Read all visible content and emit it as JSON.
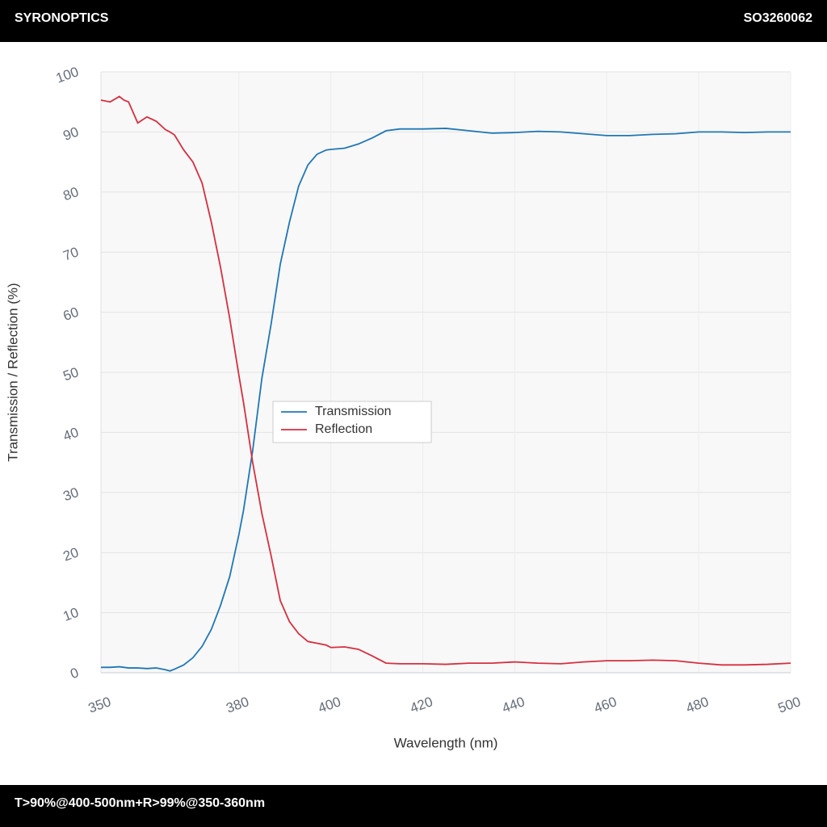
{
  "header": {
    "brand": "SYRONOPTICS",
    "code": "SO3260062"
  },
  "footer": {
    "spec": "T>90%@400-500nm+R>99%@350-360nm"
  },
  "chart_data": {
    "type": "line",
    "xlabel": "Wavelength (nm)",
    "ylabel": "Transmission / Reflection (%)",
    "x": [
      350,
      352,
      354,
      355,
      356,
      358,
      360,
      362,
      364,
      365,
      366,
      368,
      370,
      372,
      374,
      376,
      378,
      380,
      381,
      383,
      385,
      387,
      389,
      391,
      393,
      395,
      397,
      399,
      400,
      403,
      406,
      409,
      412,
      415,
      420,
      425,
      430,
      435,
      440,
      445,
      450,
      455,
      460,
      465,
      470,
      475,
      480,
      485,
      490,
      495,
      500
    ],
    "series": [
      {
        "name": "Transmission",
        "color": "#1f77b4",
        "values": [
          0.9,
          0.9,
          1.0,
          0.9,
          0.8,
          0.8,
          0.7,
          0.8,
          0.5,
          0.3,
          0.6,
          1.3,
          2.5,
          4.4,
          7.2,
          11.2,
          16,
          23,
          27,
          37,
          49,
          58,
          68,
          75,
          81,
          84.5,
          86.3,
          87,
          87.1,
          87.3,
          88,
          89,
          90.2,
          90.5,
          90.5,
          90.6,
          90.2,
          89.8,
          89.9,
          90.1,
          90.0,
          89.7,
          89.4,
          89.4,
          89.6,
          89.7,
          90.0,
          90.0,
          89.9,
          90.0,
          90.0
        ]
      },
      {
        "name": "Reflection",
        "color": "#d62f3f",
        "values": [
          95.3,
          95.0,
          95.9,
          95.3,
          95.0,
          91.5,
          92.5,
          91.8,
          90.4,
          90.0,
          89.5,
          87,
          85,
          81.5,
          75,
          67.5,
          59,
          49.5,
          45,
          35,
          26.5,
          19.5,
          12,
          8.5,
          6.5,
          5.2,
          4.9,
          4.6,
          4.2,
          4.3,
          3.9,
          2.8,
          1.6,
          1.5,
          1.5,
          1.4,
          1.6,
          1.6,
          1.8,
          1.6,
          1.5,
          1.8,
          2.0,
          2.0,
          2.1,
          2.0,
          1.6,
          1.3,
          1.3,
          1.4,
          1.6
        ]
      }
    ],
    "xlim": [
      350,
      500
    ],
    "xticks": [
      350,
      380,
      400,
      420,
      440,
      460,
      480,
      500
    ],
    "ylim": [
      0,
      100
    ],
    "yticks": [
      0,
      10,
      20,
      30,
      40,
      50,
      60,
      70,
      80,
      90,
      100
    ],
    "grid": true,
    "legend": "center"
  }
}
